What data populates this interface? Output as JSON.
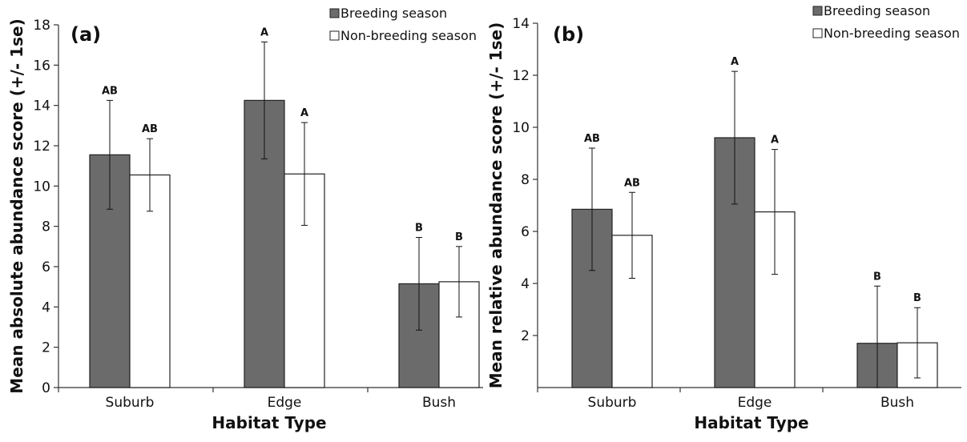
{
  "colors": {
    "breeding": "#6b6b6b",
    "nonbreeding": "#ffffff",
    "outline": "#222222",
    "axis": "#333333"
  },
  "chart_data": [
    {
      "type": "bar",
      "panel_label": "(a)",
      "categories": [
        "Suburb",
        "Edge",
        "Bush"
      ],
      "xlabel": "Habitat Type",
      "ylabel": "Mean absolute abundance score (+/- 1se)",
      "ylim": [
        0,
        18
      ],
      "yticks": [
        "0",
        "2",
        "4",
        "6",
        "8",
        "10",
        "12",
        "14",
        "16",
        "18"
      ],
      "grid": false,
      "legend_position": "top-right",
      "series": [
        {
          "name": "Breeding season",
          "values": [
            11.55,
            14.25,
            5.15
          ],
          "errors": [
            2.7,
            2.9,
            2.3
          ],
          "sig_labels": [
            "AB",
            "A",
            "B"
          ]
        },
        {
          "name": "Non-breeding season",
          "values": [
            10.55,
            10.6,
            5.25
          ],
          "errors": [
            1.8,
            2.55,
            1.75
          ],
          "sig_labels": [
            "AB",
            "A",
            "B"
          ]
        }
      ]
    },
    {
      "type": "bar",
      "panel_label": "(b)",
      "categories": [
        "Suburb",
        "Edge",
        "Bush"
      ],
      "xlabel": "Habitat Type",
      "ylabel": "Mean relative abundance score (+/- 1se)",
      "ylim": [
        0,
        14
      ],
      "yticks": [
        "2",
        "4",
        "6",
        "8",
        "10",
        "12",
        "14"
      ],
      "grid": false,
      "legend_position": "top-right",
      "series": [
        {
          "name": "Breeding season",
          "values": [
            6.85,
            9.6,
            1.7
          ],
          "errors": [
            2.35,
            2.55,
            2.2
          ],
          "sig_labels": [
            "AB",
            "A",
            "B"
          ]
        },
        {
          "name": "Non-breeding season",
          "values": [
            5.85,
            6.75,
            1.72
          ],
          "errors": [
            1.65,
            2.4,
            1.35
          ],
          "sig_labels": [
            "AB",
            "A",
            "B"
          ]
        }
      ]
    }
  ]
}
